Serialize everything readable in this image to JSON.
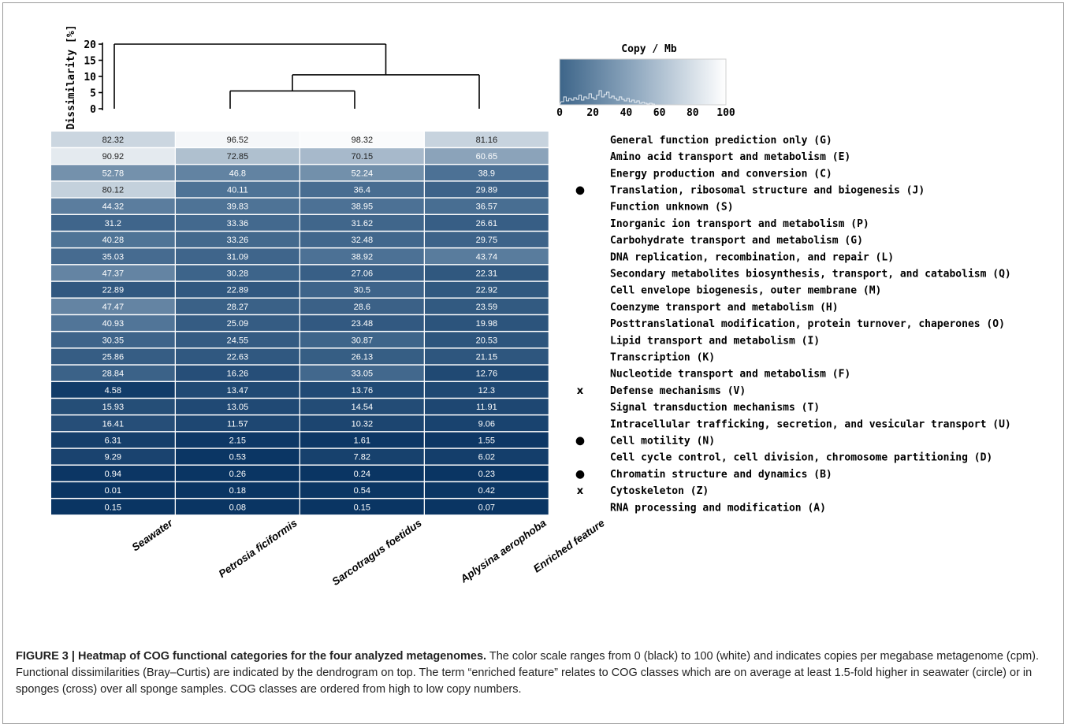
{
  "figure_label": "FIGURE 3 |",
  "figure_title": "Heatmap of COG functional categories for the four analyzed metagenomes.",
  "caption_text": "The color scale ranges from 0 (black) to 100 (white) and indicates copies per megabase metagenome (cpm). Functional dissimilarities (Bray–Curtis) are indicated by the dendrogram on top. The term “enriched feature” relates to COG classes which are on average at least 1.5-fold higher in seawater (circle) or in sponges (cross) over all sponge samples. COG classes are ordered from high to low copy numbers.",
  "colors": {
    "low": "#0a3563",
    "mid": "#4e7396",
    "high": "#ffffff",
    "text_light": "#ffffff",
    "text_dark": "#222222",
    "line": "#000000"
  },
  "chart_data": {
    "type": "heatmap",
    "samples": [
      "Seawater",
      "Petrosia ficiformis",
      "Sarcotragus foetidus",
      "Aplysina aerophoba"
    ],
    "enriched_column_label": "Enriched feature",
    "categories": [
      "General function prediction only (G)",
      "Amino acid transport and metabolism (E)",
      "Energy production and conversion (C)",
      "Translation, ribosomal structure and biogenesis (J)",
      "Function unknown (S)",
      "Inorganic ion transport and metabolism (P)",
      "Carbohydrate transport and metabolism (G)",
      "DNA replication, recombination, and repair (L)",
      "Secondary metabolites biosynthesis, transport, and catabolism (Q)",
      "Cell envelope biogenesis, outer membrane (M)",
      "Coenzyme transport and metabolism (H)",
      "Posttranslational modification, protein turnover, chaperones (O)",
      "Lipid transport and metabolism (I)",
      "Transcription (K)",
      "Nucleotide transport and metabolism (F)",
      "Defense mechanisms (V)",
      "Signal transduction mechanisms (T)",
      "Intracellular trafficking, secretion, and vesicular transport (U)",
      "Cell motility (N)",
      "Cell cycle control, cell division, chromosome partitioning (D)",
      "Chromatin structure and dynamics (B)",
      "Cytoskeleton (Z)",
      "RNA processing and modification (A)"
    ],
    "values": [
      [
        "82.32",
        "96.52",
        "98.32",
        "81.16"
      ],
      [
        "90.92",
        "72.85",
        "70.15",
        "60.65"
      ],
      [
        "52.78",
        "46.8",
        "52.24",
        "38.9"
      ],
      [
        "80.12",
        "40.11",
        "36.4",
        "29.89"
      ],
      [
        "44.32",
        "39.83",
        "38.95",
        "36.57"
      ],
      [
        "31.2",
        "33.36",
        "31.62",
        "26.61"
      ],
      [
        "40.28",
        "33.26",
        "32.48",
        "29.75"
      ],
      [
        "35.03",
        "31.09",
        "38.92",
        "43.74"
      ],
      [
        "47.37",
        "30.28",
        "27.06",
        "22.31"
      ],
      [
        "22.89",
        "22.89",
        "30.5",
        "22.92"
      ],
      [
        "47.47",
        "28.27",
        "28.6",
        "23.59"
      ],
      [
        "40.93",
        "25.09",
        "23.48",
        "19.98"
      ],
      [
        "30.35",
        "24.55",
        "30.87",
        "20.53"
      ],
      [
        "25.86",
        "22.63",
        "26.13",
        "21.15"
      ],
      [
        "28.84",
        "16.26",
        "33.05",
        "12.76"
      ],
      [
        "4.58",
        "13.47",
        "13.76",
        "12.3"
      ],
      [
        "15.93",
        "13.05",
        "14.54",
        "11.91"
      ],
      [
        "16.41",
        "11.57",
        "10.32",
        "9.06"
      ],
      [
        "6.31",
        "2.15",
        "1.61",
        "1.55"
      ],
      [
        "9.29",
        "0.53",
        "7.82",
        "6.02"
      ],
      [
        "0.94",
        "0.26",
        "0.24",
        "0.23"
      ],
      [
        "0.01",
        "0.18",
        "0.54",
        "0.42"
      ],
      [
        "0.15",
        "0.08",
        "0.15",
        "0.07"
      ]
    ],
    "enriched_markers": [
      "",
      "",
      "",
      "●",
      "",
      "",
      "",
      "",
      "",
      "",
      "",
      "",
      "",
      "",
      "",
      "x",
      "",
      "",
      "●",
      "",
      "●",
      "x",
      ""
    ],
    "color_scale": {
      "title": "Copy / Mb",
      "ticks": [
        "0",
        "20",
        "40",
        "60",
        "80",
        "100"
      ],
      "range": [
        0,
        100
      ]
    },
    "dendrogram": {
      "ylabel": "Dissimilarity [%]",
      "yticks": [
        "0",
        "5",
        "10",
        "15",
        "20"
      ],
      "ylim": [
        0,
        20
      ],
      "merges": [
        {
          "left": 1,
          "right": 2,
          "height": 5.5
        },
        {
          "left": "Petrosia ficiformis+Sarcotragus foetidus",
          "right": 3,
          "height": 10.5
        },
        {
          "left": 0,
          "right": "Petrosia ficiformis+Sarcotragus foetidus+Aplysina aerophoba",
          "height": 20
        }
      ]
    }
  }
}
